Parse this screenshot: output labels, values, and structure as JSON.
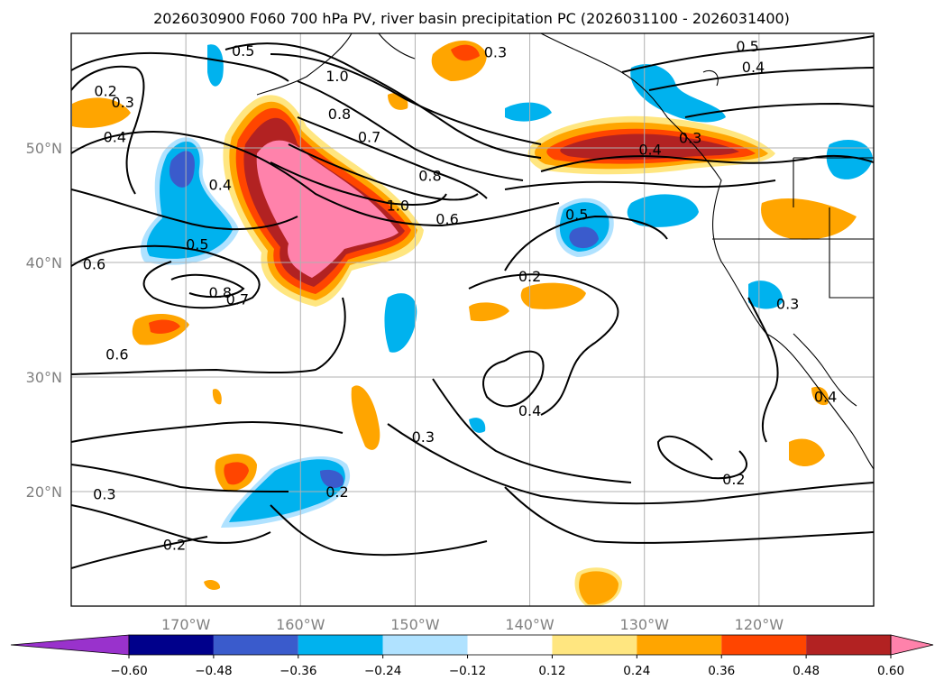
{
  "chart_data": {
    "type": "contour-map",
    "title": "2026030900 F060 700 hPa PV, river basin precipitation PC (2026031100 - 2026031400)",
    "x_ticks": [
      {
        "lon": -170,
        "label": "170°W"
      },
      {
        "lon": -160,
        "label": "160°W"
      },
      {
        "lon": -150,
        "label": "150°W"
      },
      {
        "lon": -140,
        "label": "140°W"
      },
      {
        "lon": -130,
        "label": "130°W"
      },
      {
        "lon": -120,
        "label": "120°W"
      }
    ],
    "y_ticks": [
      {
        "lat": 50,
        "label": "50°N"
      },
      {
        "lat": 40,
        "label": "40°N"
      },
      {
        "lat": 30,
        "label": "30°N"
      },
      {
        "lat": 20,
        "label": "20°N"
      }
    ],
    "lon_range": [
      -180,
      -110
    ],
    "lat_range": [
      10,
      60
    ],
    "grid": true,
    "colorbar": {
      "orientation": "horizontal",
      "extend": "both",
      "levels": [
        -0.6,
        -0.48,
        -0.36,
        -0.24,
        -0.12,
        0.12,
        0.24,
        0.36,
        0.48,
        0.6
      ],
      "tick_labels": [
        "−0.60",
        "−0.48",
        "−0.36",
        "−0.24",
        "−0.12",
        "0.12",
        "0.24",
        "0.36",
        "0.48",
        "0.60"
      ],
      "colors": [
        "#9932cc",
        "#00008b",
        "#3a5bcc",
        "#00b2ee",
        "#b0e2ff",
        "#ffffff",
        "#ffe680",
        "#ffa500",
        "#ff4500",
        "#b22222",
        "#ff82ab"
      ]
    },
    "contour_labels": [
      {
        "text": "0.5",
        "lon": -165.0,
        "lat": 58.5
      },
      {
        "text": "1.0",
        "lon": -156.8,
        "lat": 56.3
      },
      {
        "text": "0.8",
        "lon": -156.6,
        "lat": 53.0
      },
      {
        "text": "0.7",
        "lon": -154.0,
        "lat": 51.0
      },
      {
        "text": "0.2",
        "lon": -177.0,
        "lat": 55.0
      },
      {
        "text": "0.3",
        "lon": -175.5,
        "lat": 54.0
      },
      {
        "text": "0.4",
        "lon": -176.2,
        "lat": 51.0
      },
      {
        "text": "0.4",
        "lon": -167.0,
        "lat": 46.8
      },
      {
        "text": "0.8",
        "lon": -148.7,
        "lat": 47.6
      },
      {
        "text": "1.0",
        "lon": -151.5,
        "lat": 45.0
      },
      {
        "text": "0.6",
        "lon": -147.2,
        "lat": 43.8
      },
      {
        "text": "0.5",
        "lon": -169.0,
        "lat": 41.6
      },
      {
        "text": "0.6",
        "lon": -178.0,
        "lat": 39.9
      },
      {
        "text": "0.8",
        "lon": -167.0,
        "lat": 37.4
      },
      {
        "text": "0.7",
        "lon": -165.5,
        "lat": 36.8
      },
      {
        "text": "0.5",
        "lon": -135.9,
        "lat": 44.2
      },
      {
        "text": "0.2",
        "lon": -140.0,
        "lat": 38.8
      },
      {
        "text": "0.4",
        "lon": -129.5,
        "lat": 49.9
      },
      {
        "text": "0.3",
        "lon": -126.0,
        "lat": 50.9
      },
      {
        "text": "0.3",
        "lon": -143.0,
        "lat": 58.4
      },
      {
        "text": "0.5",
        "lon": -121.0,
        "lat": 58.9
      },
      {
        "text": "0.4",
        "lon": -120.5,
        "lat": 57.1
      },
      {
        "text": "0.6",
        "lon": -176.0,
        "lat": 32.0
      },
      {
        "text": "0.4",
        "lon": -140.0,
        "lat": 27.1
      },
      {
        "text": "0.3",
        "lon": -149.3,
        "lat": 24.8
      },
      {
        "text": "0.2",
        "lon": -122.2,
        "lat": 21.1
      },
      {
        "text": "0.3",
        "lon": -177.1,
        "lat": 19.8
      },
      {
        "text": "0.2",
        "lon": -156.8,
        "lat": 20.0
      },
      {
        "text": "0.2",
        "lon": -171.0,
        "lat": 15.4
      },
      {
        "text": "0.4",
        "lon": -114.2,
        "lat": 28.3
      },
      {
        "text": "0.3",
        "lon": -117.5,
        "lat": 36.4
      }
    ]
  }
}
